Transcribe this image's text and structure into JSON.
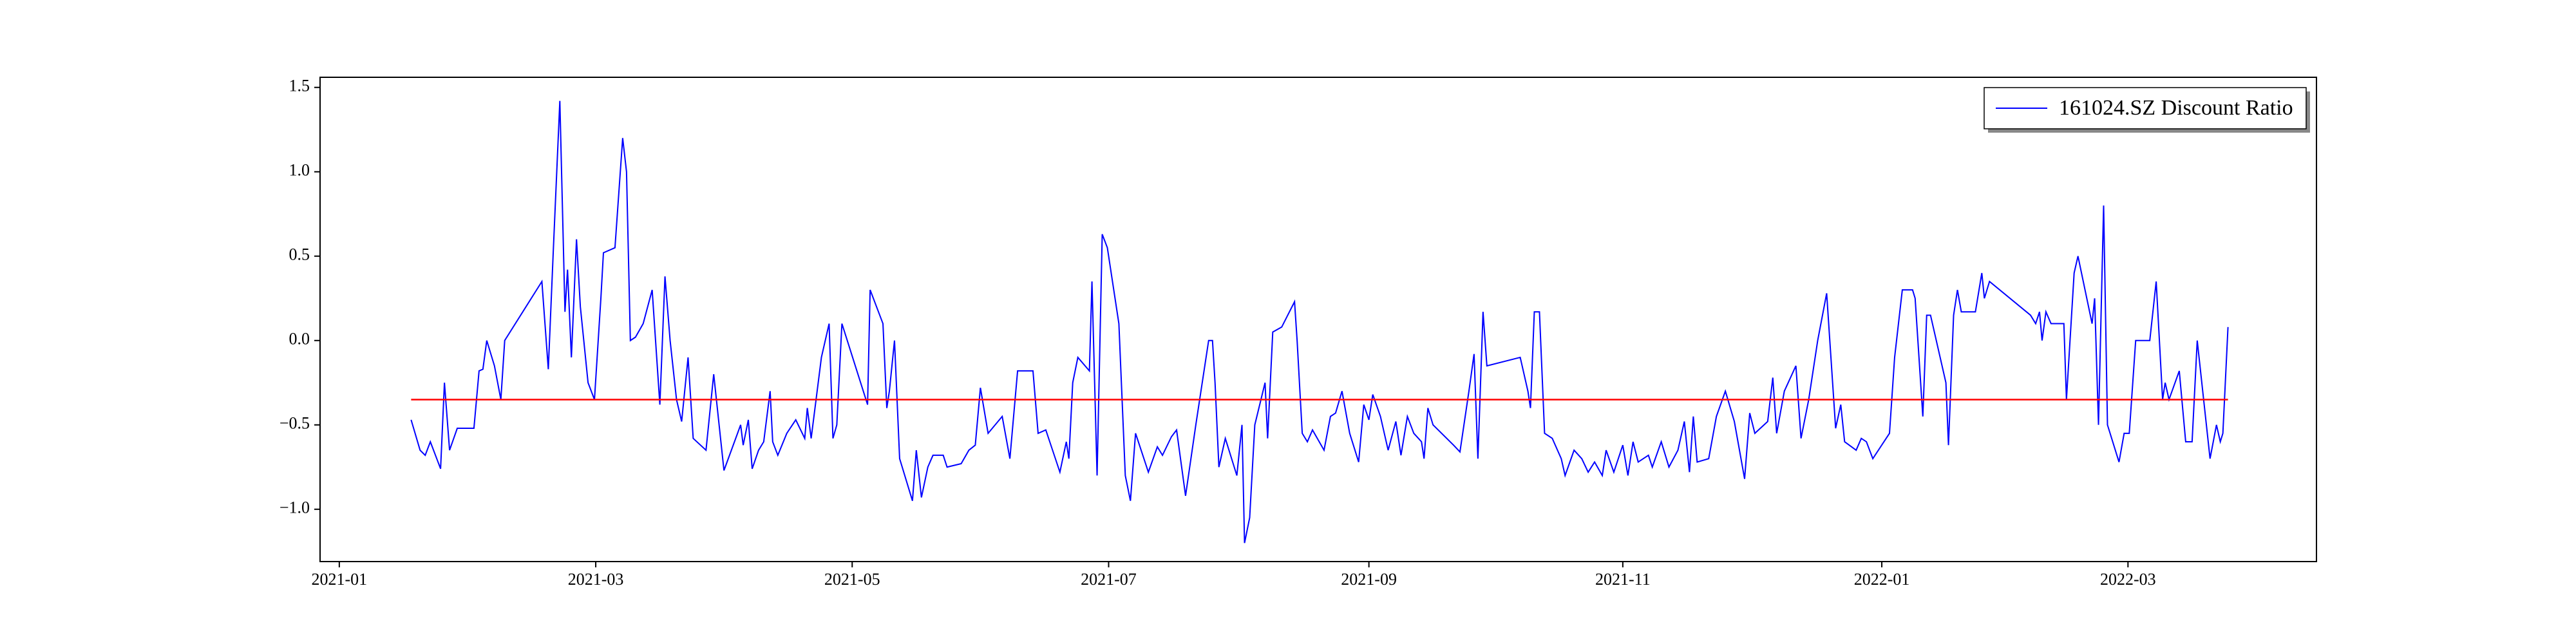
{
  "chart_data": {
    "type": "line",
    "xlim": [
      -0.15,
      15.42
    ],
    "ylim": [
      -1.31,
      1.56
    ],
    "xticks": [
      {
        "value": 0,
        "label": "2021-01"
      },
      {
        "value": 2,
        "label": "2021-03"
      },
      {
        "value": 4,
        "label": "2021-05"
      },
      {
        "value": 6,
        "label": "2021-07"
      },
      {
        "value": 8.03,
        "label": "2021-09"
      },
      {
        "value": 10.01,
        "label": "2021-11"
      },
      {
        "value": 12.03,
        "label": "2022-01"
      },
      {
        "value": 13.95,
        "label": "2022-03"
      }
    ],
    "yticks": [
      {
        "value": -1,
        "label": "−1.0"
      },
      {
        "value": -0.5,
        "label": "−0.5"
      },
      {
        "value": 0,
        "label": "0.0"
      },
      {
        "value": 0.5,
        "label": "0.5"
      },
      {
        "value": 1,
        "label": "1.0"
      },
      {
        "value": 1.5,
        "label": "1.5"
      }
    ],
    "grid": false,
    "legend_position": "upper-right",
    "hline": {
      "value": -0.35,
      "color": "red"
    },
    "x": [
      0.56,
      0.63,
      0.67,
      0.71,
      0.76,
      0.79,
      0.82,
      0.86,
      0.92,
      1.05,
      1.09,
      1.12,
      1.15,
      1.21,
      1.26,
      1.29,
      1.58,
      1.63,
      1.67,
      1.72,
      1.76,
      1.78,
      1.81,
      1.85,
      1.88,
      1.94,
      1.99,
      2.04,
      2.06,
      2.15,
      2.21,
      2.24,
      2.27,
      2.31,
      2.37,
      2.44,
      2.5,
      2.54,
      2.58,
      2.63,
      2.67,
      2.72,
      2.76,
      2.86,
      2.92,
      3.0,
      3.13,
      3.15,
      3.19,
      3.22,
      3.27,
      3.31,
      3.36,
      3.38,
      3.42,
      3.49,
      3.56,
      3.63,
      3.65,
      3.68,
      3.76,
      3.82,
      3.85,
      3.88,
      3.92,
      4.12,
      4.14,
      4.24,
      4.27,
      4.29,
      4.33,
      4.37,
      4.47,
      4.5,
      4.54,
      4.59,
      4.63,
      4.71,
      4.74,
      4.85,
      4.91,
      4.96,
      5.0,
      5.06,
      5.17,
      5.23,
      5.29,
      5.41,
      5.45,
      5.51,
      5.62,
      5.67,
      5.69,
      5.72,
      5.76,
      5.85,
      5.87,
      5.91,
      5.95,
      5.99,
      6.08,
      6.13,
      6.17,
      6.21,
      6.31,
      6.38,
      6.42,
      6.49,
      6.53,
      6.6,
      6.68,
      6.78,
      6.81,
      6.83,
      6.86,
      6.91,
      7.0,
      7.04,
      7.06,
      7.1,
      7.14,
      7.22,
      7.24,
      7.28,
      7.35,
      7.45,
      7.47,
      7.51,
      7.55,
      7.59,
      7.68,
      7.73,
      7.77,
      7.82,
      7.88,
      7.95,
      7.99,
      8.03,
      8.06,
      8.12,
      8.18,
      8.24,
      8.28,
      8.33,
      8.38,
      8.44,
      8.46,
      8.49,
      8.53,
      8.69,
      8.74,
      8.81,
      8.85,
      8.88,
      8.92,
      8.95,
      9.21,
      9.27,
      9.29,
      9.32,
      9.36,
      9.4,
      9.46,
      9.53,
      9.56,
      9.63,
      9.69,
      9.74,
      9.79,
      9.85,
      9.88,
      9.94,
      10.01,
      10.05,
      10.09,
      10.13,
      10.21,
      10.24,
      10.31,
      10.37,
      10.44,
      10.49,
      10.53,
      10.56,
      10.59,
      10.68,
      10.74,
      10.81,
      10.88,
      10.96,
      11.0,
      11.04,
      11.14,
      11.18,
      11.21,
      11.27,
      11.36,
      11.4,
      11.46,
      11.53,
      11.6,
      11.67,
      11.71,
      11.74,
      11.83,
      11.87,
      11.91,
      11.96,
      12.09,
      12.13,
      12.19,
      12.27,
      12.29,
      12.35,
      12.38,
      12.41,
      12.53,
      12.55,
      12.59,
      12.62,
      12.65,
      12.76,
      12.81,
      12.83,
      12.87,
      13.19,
      13.23,
      13.26,
      13.28,
      13.31,
      13.35,
      13.45,
      13.47,
      13.53,
      13.56,
      13.67,
      13.69,
      13.72,
      13.76,
      13.79,
      13.88,
      13.92,
      13.96,
      14.01,
      14.12,
      14.17,
      14.22,
      14.24,
      14.27,
      14.35,
      14.4,
      14.45,
      14.49,
      14.54,
      14.59,
      14.64,
      14.67,
      14.69,
      14.73
    ],
    "series": [
      {
        "name": "161024.SZ Discount Ratio",
        "color": "blue",
        "values": [
          -0.47,
          -0.65,
          -0.68,
          -0.6,
          -0.7,
          -0.76,
          -0.25,
          -0.65,
          -0.52,
          -0.52,
          -0.18,
          -0.17,
          0.0,
          -0.15,
          -0.35,
          0.0,
          0.35,
          -0.17,
          0.55,
          1.42,
          0.17,
          0.42,
          -0.1,
          0.6,
          0.2,
          -0.25,
          -0.35,
          0.25,
          0.52,
          0.55,
          1.2,
          1.0,
          0.0,
          0.02,
          0.1,
          0.3,
          -0.38,
          0.38,
          0.0,
          -0.35,
          -0.48,
          -0.1,
          -0.58,
          -0.65,
          -0.2,
          -0.77,
          -0.5,
          -0.62,
          -0.47,
          -0.76,
          -0.65,
          -0.6,
          -0.3,
          -0.6,
          -0.68,
          -0.55,
          -0.47,
          -0.58,
          -0.4,
          -0.58,
          -0.1,
          0.1,
          -0.58,
          -0.5,
          0.1,
          -0.38,
          0.3,
          0.1,
          -0.4,
          -0.3,
          0.0,
          -0.7,
          -0.95,
          -0.65,
          -0.93,
          -0.75,
          -0.68,
          -0.68,
          -0.75,
          -0.73,
          -0.65,
          -0.62,
          -0.28,
          -0.55,
          -0.45,
          -0.7,
          -0.18,
          -0.18,
          -0.55,
          -0.53,
          -0.78,
          -0.6,
          -0.7,
          -0.25,
          -0.1,
          -0.18,
          0.35,
          -0.8,
          0.63,
          0.55,
          0.1,
          -0.8,
          -0.95,
          -0.55,
          -0.78,
          -0.63,
          -0.68,
          -0.57,
          -0.53,
          -0.92,
          -0.5,
          0.0,
          0.0,
          -0.25,
          -0.75,
          -0.58,
          -0.8,
          -0.5,
          -1.2,
          -1.05,
          -0.5,
          -0.25,
          -0.58,
          0.05,
          0.08,
          0.23,
          0.0,
          -0.55,
          -0.6,
          -0.53,
          -0.65,
          -0.45,
          -0.43,
          -0.3,
          -0.55,
          -0.72,
          -0.38,
          -0.47,
          -0.32,
          -0.45,
          -0.65,
          -0.48,
          -0.68,
          -0.45,
          -0.55,
          -0.6,
          -0.7,
          -0.4,
          -0.5,
          -0.62,
          -0.66,
          -0.3,
          -0.08,
          -0.7,
          0.17,
          -0.15,
          -0.1,
          -0.3,
          -0.4,
          0.17,
          0.17,
          -0.55,
          -0.58,
          -0.7,
          -0.8,
          -0.65,
          -0.7,
          -0.78,
          -0.72,
          -0.8,
          -0.65,
          -0.78,
          -0.62,
          -0.8,
          -0.6,
          -0.72,
          -0.68,
          -0.75,
          -0.6,
          -0.75,
          -0.65,
          -0.48,
          -0.78,
          -0.45,
          -0.72,
          -0.7,
          -0.45,
          -0.3,
          -0.48,
          -0.82,
          -0.43,
          -0.55,
          -0.48,
          -0.22,
          -0.55,
          -0.3,
          -0.15,
          -0.58,
          -0.35,
          0.0,
          0.28,
          -0.52,
          -0.38,
          -0.6,
          -0.65,
          -0.58,
          -0.6,
          -0.7,
          -0.55,
          -0.1,
          0.3,
          0.3,
          0.25,
          -0.45,
          0.15,
          0.15,
          -0.25,
          -0.62,
          0.15,
          0.3,
          0.17,
          0.17,
          0.4,
          0.25,
          0.35,
          0.15,
          0.1,
          0.17,
          0.0,
          0.17,
          0.1,
          0.1,
          -0.35,
          0.4,
          0.5,
          0.1,
          0.25,
          -0.5,
          0.8,
          -0.5,
          -0.72,
          -0.55,
          -0.55,
          0.0,
          0.0,
          0.35,
          -0.35,
          -0.25,
          -0.35,
          -0.18,
          -0.6,
          -0.6,
          0.0,
          -0.35,
          -0.7,
          -0.5,
          -0.6,
          -0.55,
          0.08
        ]
      }
    ]
  }
}
